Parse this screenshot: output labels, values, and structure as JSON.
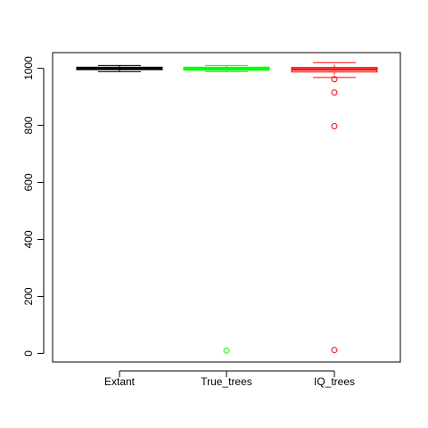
{
  "chart_data": {
    "type": "box",
    "title": "",
    "xlabel": "",
    "ylabel": "",
    "ylim": [
      -30,
      1055
    ],
    "yticks": [
      0,
      200,
      400,
      600,
      800,
      1000
    ],
    "grid": false,
    "categories": [
      "Extant",
      "True_trees",
      "IQ_trees"
    ],
    "series": [
      {
        "category": "Extant",
        "color": "#000000",
        "min": 988,
        "q1": 995,
        "median": 1000,
        "q3": 1004,
        "max": 1010,
        "outliers": []
      },
      {
        "category": "True_trees",
        "color": "#00ff00",
        "min": 988,
        "q1": 993,
        "median": 999,
        "q3": 1004,
        "max": 1010,
        "outliers": [
          10
        ]
      },
      {
        "category": "IQ_trees",
        "color": "#ff0000",
        "min": 968,
        "q1": 987,
        "median": 996,
        "q3": 1003,
        "max": 1020,
        "outliers": [
          962,
          915,
          797,
          12
        ]
      }
    ]
  }
}
